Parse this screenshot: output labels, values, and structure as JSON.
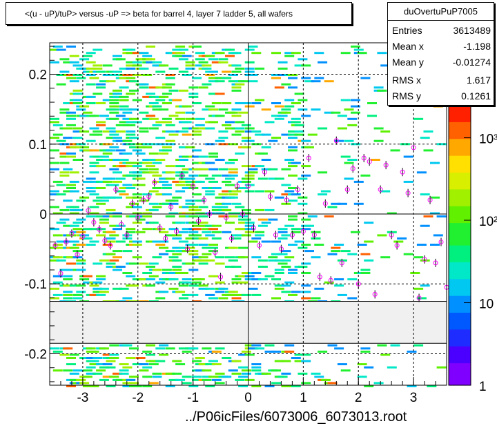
{
  "title": "<(u - uP)/tuP> versus  -uP => beta for barrel 4, layer 7 ladder 5, all wafers",
  "stats": {
    "name": "duOvertuPuP7005",
    "rows": [
      {
        "label": "Entries",
        "value": "3613489"
      },
      {
        "label": "Mean x",
        "value": "-1.198"
      },
      {
        "label": "Mean y",
        "value": "-0.01274"
      },
      {
        "label": "RMS x",
        "value": "1.617"
      },
      {
        "label": "RMS y",
        "value": "0.1261"
      }
    ]
  },
  "footer": "../P06icFiles/6073006_6073013.root",
  "chart_data": {
    "type": "heatmap",
    "title": "<(u - uP)/tuP> versus  -uP => beta for barrel 4, layer 7 ladder 5, all wafers",
    "xlabel": "",
    "ylabel": "",
    "xlim": [
      -3.6,
      3.6
    ],
    "ylim": [
      -0.245,
      0.245
    ],
    "x_ticks": [
      {
        "value": -3,
        "label": "-3"
      },
      {
        "value": -2,
        "label": "-2"
      },
      {
        "value": -1,
        "label": "-1"
      },
      {
        "value": 0,
        "label": "0"
      },
      {
        "value": 1,
        "label": "1"
      },
      {
        "value": 2,
        "label": "2"
      },
      {
        "value": 3,
        "label": "3"
      }
    ],
    "y_ticks": [
      {
        "value": -0.2,
        "label": "-0.2"
      },
      {
        "value": -0.1,
        "label": "-0.1"
      },
      {
        "value": 0,
        "label": "0"
      },
      {
        "value": 0.1,
        "label": "0.1"
      },
      {
        "value": 0.2,
        "label": "0.2"
      }
    ],
    "grid": true,
    "gap_band": {
      "y_min": -0.185,
      "y_max": -0.125
    },
    "z_scale": "log",
    "z_ticks": [
      {
        "value": 1,
        "label": "1"
      },
      {
        "value": 10,
        "label": "10"
      },
      {
        "value": 100,
        "label": "10²"
      },
      {
        "value": 1000,
        "label": "10³"
      }
    ],
    "z_range": [
      1,
      2500
    ],
    "profile_points": [
      [
        -3.5,
        -0.045
      ],
      [
        -3.4,
        -0.085
      ],
      [
        -3.3,
        -0.04
      ],
      [
        -3.2,
        -0.028
      ],
      [
        -3.1,
        -0.058
      ],
      [
        -3.0,
        -0.032
      ],
      [
        -2.9,
        0.005
      ],
      [
        -2.8,
        -0.012
      ],
      [
        -2.7,
        -0.022
      ],
      [
        -2.6,
        -0.038
      ],
      [
        -2.5,
        -0.045
      ],
      [
        -2.4,
        0.035
      ],
      [
        -2.3,
        -0.015
      ],
      [
        -2.2,
        -0.03
      ],
      [
        -2.1,
        0.015
      ],
      [
        -2.0,
        -0.005
      ],
      [
        -1.9,
        0.02
      ],
      [
        -1.8,
        0.025
      ],
      [
        -1.7,
        0.045
      ],
      [
        -1.6,
        -0.02
      ],
      [
        -1.5,
        -0.035
      ],
      [
        -1.4,
        0.01
      ],
      [
        -1.3,
        -0.025
      ],
      [
        -1.2,
        0.055
      ],
      [
        -1.1,
        -0.05
      ],
      [
        -1.0,
        0.04
      ],
      [
        -0.9,
        -0.01
      ],
      [
        -0.8,
        0.02
      ],
      [
        -0.7,
        0.0
      ],
      [
        -0.6,
        -0.055
      ],
      [
        -0.5,
        -0.09
      ],
      [
        -0.4,
        -0.005
      ],
      [
        -0.3,
        -0.035
      ],
      [
        -0.2,
        0.04
      ],
      [
        -0.1,
        0.0
      ],
      [
        0.0,
        0.04
      ],
      [
        0.1,
        -0.02
      ],
      [
        0.2,
        -0.045
      ],
      [
        0.3,
        0.06
      ],
      [
        0.4,
        0.025
      ],
      [
        0.5,
        -0.03
      ],
      [
        0.6,
        -0.05
      ],
      [
        0.7,
        0.02
      ],
      [
        0.8,
        -0.03
      ],
      [
        0.9,
        0.035
      ],
      [
        1.0,
        -0.025
      ],
      [
        1.1,
        0.08
      ],
      [
        1.2,
        -0.03
      ],
      [
        1.3,
        -0.09
      ],
      [
        1.4,
        0.015
      ],
      [
        1.5,
        -0.095
      ],
      [
        1.6,
        0.105
      ],
      [
        1.7,
        -0.07
      ],
      [
        1.8,
        0.035
      ],
      [
        1.9,
        0.065
      ],
      [
        2.0,
        -0.1
      ],
      [
        2.1,
        0.08
      ],
      [
        2.2,
        0.075
      ],
      [
        2.3,
        -0.115
      ],
      [
        2.4,
        0.035
      ],
      [
        2.5,
        0.07
      ],
      [
        2.6,
        -0.03
      ],
      [
        2.7,
        -0.045
      ],
      [
        2.8,
        0.06
      ],
      [
        2.9,
        0.03
      ],
      [
        3.0,
        0.095
      ],
      [
        3.1,
        -0.12
      ],
      [
        3.2,
        -0.065
      ],
      [
        3.3,
        0.02
      ],
      [
        3.4,
        -0.07
      ],
      [
        3.5,
        -0.04
      ],
      [
        3.6,
        -0.105
      ]
    ]
  }
}
